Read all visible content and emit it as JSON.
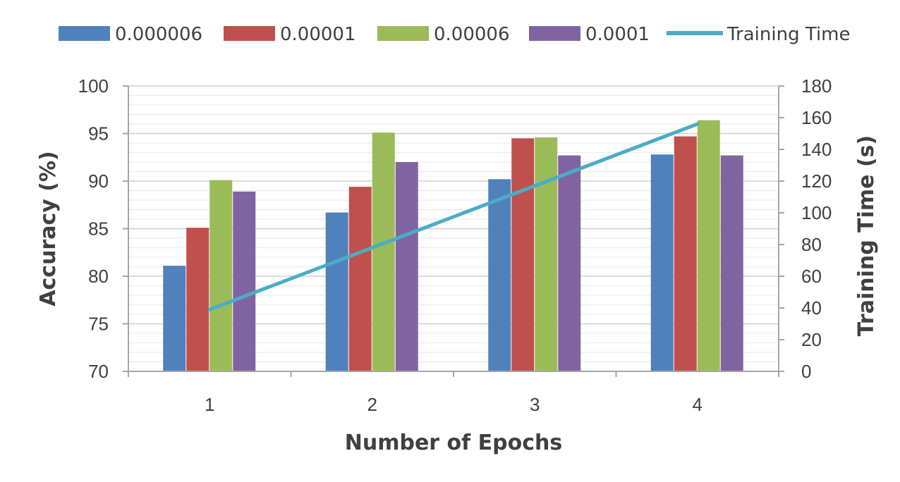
{
  "chart_data": {
    "type": "bar",
    "categories": [
      "1",
      "2",
      "3",
      "4"
    ],
    "series": [
      {
        "name": "0.000006",
        "values": [
          81.1,
          86.7,
          90.2,
          92.8
        ],
        "color": "#4f81bd"
      },
      {
        "name": "0.00001",
        "values": [
          85.1,
          89.4,
          94.5,
          94.7
        ],
        "color": "#c0504d"
      },
      {
        "name": "0.00006",
        "values": [
          90.1,
          95.1,
          94.6,
          96.4
        ],
        "color": "#9bbb59"
      },
      {
        "name": "0.0001",
        "values": [
          88.9,
          92.0,
          92.7,
          92.7
        ],
        "color": "#8064a2"
      }
    ],
    "line_series": {
      "name": "Training Time",
      "values": [
        39,
        78,
        117,
        156
      ],
      "color": "#4bacc6",
      "axis": "right"
    },
    "xlabel": "Number of Epochs",
    "ylabel": "Accuracy (%)",
    "y2label": "Training Time (s)",
    "ylim": [
      70,
      100
    ],
    "y_ticks": [
      "70",
      "75",
      "80",
      "85",
      "90",
      "95",
      "100"
    ],
    "y2lim": [
      0,
      180
    ],
    "y2_ticks": [
      "0",
      "20",
      "40",
      "60",
      "80",
      "100",
      "120",
      "140",
      "160",
      "180"
    ],
    "grid": true,
    "legend_position": "top"
  }
}
